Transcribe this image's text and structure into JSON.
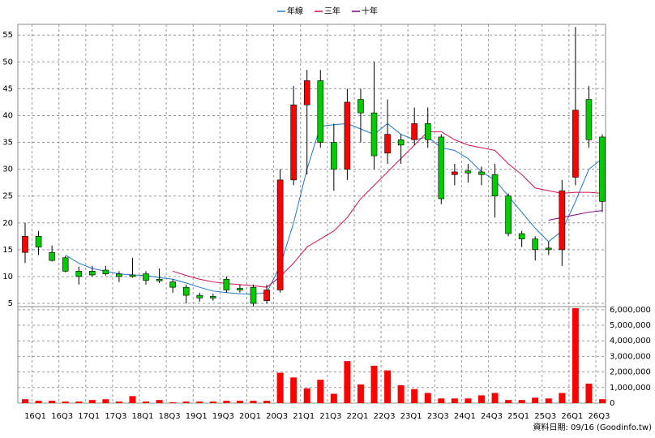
{
  "chart_data": {
    "type": "candlestick",
    "legend": "top",
    "grid": true,
    "footer": "資料日期: 09/16 (Goodinfo.tw)",
    "categories": [
      null,
      "16Q1",
      null,
      "16Q3",
      null,
      "17Q1",
      null,
      "17Q3",
      null,
      "18Q1",
      null,
      "18Q3",
      null,
      "19Q1",
      null,
      "19Q3",
      null,
      "20Q1",
      null,
      "20Q3",
      null,
      "21Q1",
      null,
      "21Q3",
      null,
      "22Q1",
      null,
      "22Q3",
      null,
      "23Q1",
      null,
      "23Q3",
      null,
      "24Q1",
      null,
      "24Q3",
      null,
      "25Q1",
      null,
      "25Q3",
      null,
      "26Q1",
      null,
      "26Q3"
    ],
    "up_color": "#ff0000",
    "down_color": "#00cc00",
    "open": [
      14.5,
      17.5,
      14.5,
      13.5,
      11,
      11,
      11.2,
      10.5,
      10.3,
      10.5,
      9.5,
      9,
      8,
      6.5,
      6.3,
      9.5,
      7.8,
      8,
      5.5,
      7.5,
      28,
      42,
      46.5,
      35,
      30,
      43,
      40.5,
      33,
      35.5,
      35.5,
      38.5,
      36,
      29,
      29.7,
      29.5,
      29,
      25,
      18,
      17,
      15.3,
      15,
      28.5,
      43,
      36
    ],
    "high": [
      20,
      18.5,
      15.8,
      13.8,
      11.8,
      12,
      12,
      11,
      13.5,
      11,
      11.5,
      9.5,
      8.5,
      7,
      6.8,
      10,
      8.5,
      8.5,
      8.5,
      30,
      45.5,
      48.5,
      48.5,
      38.5,
      45,
      45,
      50,
      43,
      36.5,
      41.5,
      41.5,
      36.5,
      31,
      31,
      30.5,
      31,
      25.5,
      18.5,
      17.5,
      16.5,
      28,
      56.5,
      45.5,
      36.5
    ],
    "low": [
      12.5,
      14,
      12.8,
      10.8,
      8.5,
      10,
      10.2,
      9,
      9.8,
      8.5,
      8.8,
      7,
      5,
      5.3,
      5.5,
      7,
      7,
      4.5,
      5,
      7,
      27,
      29,
      34,
      26,
      28,
      35,
      30,
      31,
      31,
      34.5,
      34,
      23.5,
      27,
      27.5,
      27,
      21,
      17.5,
      15.5,
      13,
      14,
      12,
      27,
      34,
      22
    ],
    "close": [
      17.5,
      15.5,
      13,
      11,
      10,
      10.3,
      10.5,
      10,
      10,
      9.3,
      9.2,
      8,
      6.5,
      6,
      6,
      7.5,
      7.5,
      5,
      7.5,
      28,
      42,
      46.5,
      35,
      30,
      42.5,
      40.5,
      32.5,
      36.5,
      34.5,
      38.5,
      35.5,
      24.5,
      29.5,
      29.3,
      29,
      25,
      18,
      17,
      15,
      15,
      26,
      41,
      35.5,
      24
    ],
    "ylim": [
      4.4,
      57
    ],
    "yticks": [
      5,
      10,
      15,
      20,
      25,
      30,
      35,
      40,
      45,
      50,
      55
    ],
    "series": [
      {
        "name": "年線",
        "color": "#1e78c8",
        "values": [
          null,
          null,
          null,
          14,
          12.5,
          11.5,
          11,
          10.5,
          10.3,
          10.2,
          9.8,
          9.5,
          8.8,
          8,
          7.3,
          7,
          6.8,
          6.7,
          7,
          12,
          20,
          30,
          38,
          38.3,
          38.5,
          37.5,
          36.5,
          38.5,
          36.5,
          35.5,
          36,
          34,
          33.5,
          32,
          29.5,
          28,
          25,
          22,
          19,
          16.5,
          18.5,
          24,
          30,
          32
        ]
      },
      {
        "name": "三年",
        "color": "#d0105a",
        "values": [
          null,
          null,
          null,
          null,
          null,
          null,
          null,
          null,
          null,
          null,
          null,
          11,
          10.2,
          9.5,
          9,
          8.7,
          8.5,
          8.3,
          8,
          10,
          12.5,
          15.5,
          17,
          18.5,
          21,
          24.5,
          27,
          29.5,
          32,
          34.5,
          37,
          37,
          35.5,
          34.5,
          34,
          33.5,
          31,
          29,
          26.5,
          26,
          25.5,
          25.7,
          25.7,
          25.5
        ]
      },
      {
        "name": "十年",
        "color": "#800080",
        "values": [
          null,
          null,
          null,
          null,
          null,
          null,
          null,
          null,
          null,
          null,
          null,
          null,
          null,
          null,
          null,
          null,
          null,
          null,
          null,
          null,
          null,
          null,
          null,
          null,
          null,
          null,
          null,
          null,
          null,
          null,
          null,
          null,
          null,
          null,
          null,
          null,
          null,
          null,
          null,
          20.5,
          21,
          21.5,
          22,
          22.3
        ]
      }
    ],
    "volume": {
      "color": "#ff0000",
      "values": [
        250000,
        150000,
        150000,
        100000,
        100000,
        200000,
        250000,
        100000,
        450000,
        100000,
        200000,
        50000,
        100000,
        100000,
        100000,
        150000,
        150000,
        150000,
        150000,
        1950000,
        1650000,
        950000,
        1500000,
        600000,
        2700000,
        1200000,
        2400000,
        2100000,
        1150000,
        900000,
        650000,
        300000,
        300000,
        300000,
        500000,
        650000,
        200000,
        200000,
        350000,
        300000,
        650000,
        6100000,
        1250000,
        250000
      ],
      "ylim": [
        0,
        6200000
      ],
      "yticks": [
        {
          "value": 0,
          "label": "0"
        },
        {
          "value": 1000000,
          "label": "1,000,000"
        },
        {
          "value": 2000000,
          "label": "2,000,000"
        },
        {
          "value": 3000000,
          "label": "3,000,000"
        },
        {
          "value": 4000000,
          "label": "4,000,000"
        },
        {
          "value": 5000000,
          "label": "5,000,000"
        },
        {
          "value": 6000000,
          "label": "6,000,000"
        }
      ]
    }
  }
}
